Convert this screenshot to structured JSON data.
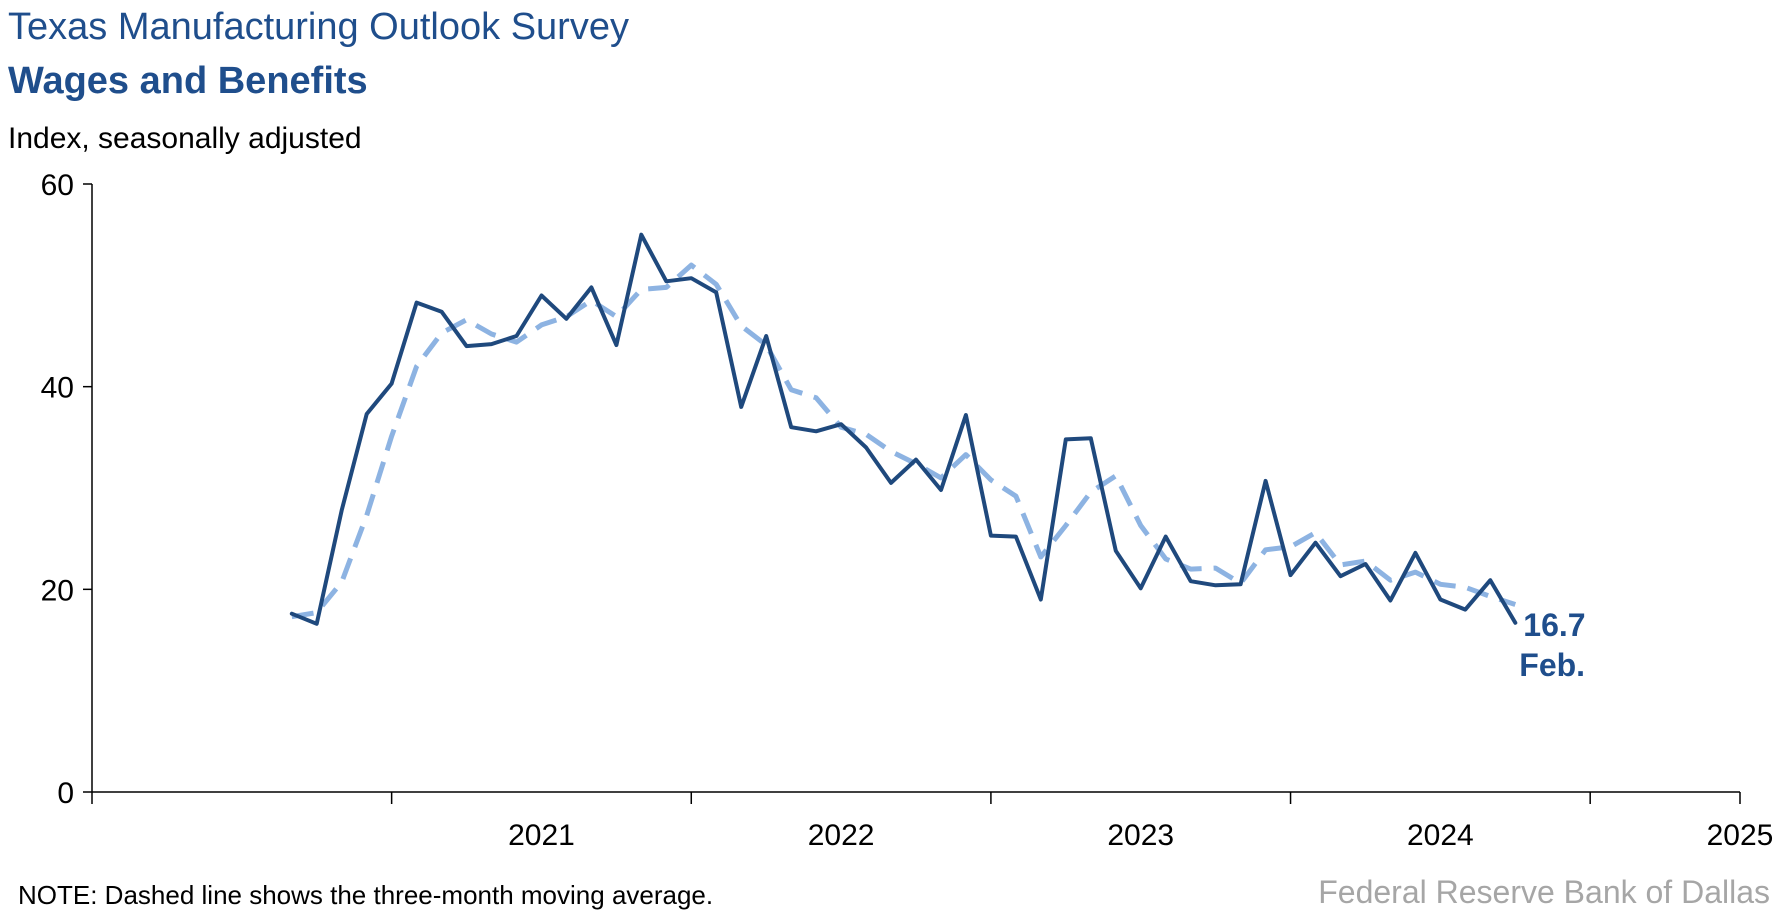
{
  "header": {
    "title": "Texas Manufacturing Outlook Survey",
    "subtitle": "Wages and Benefits",
    "unit_label": "Index, seasonally adjusted"
  },
  "footer": {
    "note": "NOTE: Dashed line shows the three-month moving average.",
    "source": "Federal Reserve Bank of Dallas"
  },
  "annotation": {
    "value": "16.7",
    "month": "Feb."
  },
  "colors": {
    "index_line": "#1f497d",
    "moving_average_line": "#8db3e2",
    "text_accent": "#1f4e8c"
  },
  "chart_data": {
    "type": "line",
    "title": "Wages and Benefits",
    "ylabel": "Index, seasonally adjusted",
    "ylim": [
      0,
      60
    ],
    "yticks": [
      "0",
      "20",
      "40",
      "60"
    ],
    "xticks": [
      "2021",
      "2022",
      "2023",
      "2024",
      "2025"
    ],
    "x_start": "2020-09",
    "grid": false,
    "series": [
      {
        "style": "solid",
        "values": [
          17.6,
          16.6,
          27.8,
          37.3,
          40.3,
          48.3,
          47.4,
          44.0,
          44.2,
          45.0,
          49.0,
          46.7,
          49.8,
          44.1,
          55.0,
          50.4,
          50.7,
          49.3,
          38.0,
          45.0,
          36.0,
          35.6,
          36.3,
          34.0,
          30.5,
          32.8,
          29.8,
          37.2,
          25.3,
          25.2,
          19.0,
          34.8,
          34.9,
          23.8,
          20.1,
          25.2,
          20.8,
          20.4,
          20.5,
          30.7,
          21.4,
          24.6,
          21.3,
          22.5,
          18.9,
          23.6,
          19.0,
          18.0,
          20.9,
          16.7
        ]
      },
      {
        "style": "dashed",
        "values": [
          17.3,
          17.7,
          20.7,
          27.3,
          35.1,
          42.0,
          45.3,
          46.6,
          45.2,
          44.4,
          46.1,
          46.9,
          48.5,
          46.9,
          49.6,
          49.8,
          52.0,
          50.1,
          46.0,
          44.1,
          39.7,
          38.9,
          36.0,
          35.3,
          33.6,
          32.4,
          31.0,
          33.3,
          30.8,
          29.2,
          23.2,
          26.3,
          29.6,
          31.2,
          26.3,
          23.0,
          22.0,
          22.1,
          20.6,
          23.9,
          24.2,
          25.6,
          22.4,
          22.8,
          20.9,
          21.7,
          20.5,
          20.2,
          19.3,
          18.5
        ]
      }
    ]
  }
}
